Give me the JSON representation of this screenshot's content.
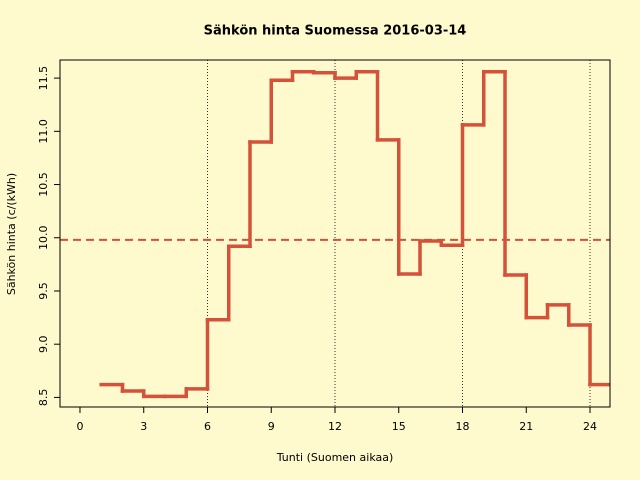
{
  "chart_data": {
    "type": "step",
    "title": "Sähkön hinta Suomessa 2016-03-14",
    "xlabel": "Tunti (Suomen aikaa)",
    "ylabel": "Sähkön hinta (c/(kWh)",
    "x": [
      1,
      2,
      3,
      4,
      5,
      6,
      7,
      8,
      9,
      10,
      11,
      12,
      13,
      14,
      15,
      16,
      17,
      18,
      19,
      20,
      21,
      22,
      23,
      24,
      25
    ],
    "series": [
      {
        "color": "#d4513a",
        "values": [
          8.62,
          8.56,
          8.51,
          8.51,
          8.58,
          9.23,
          9.92,
          10.9,
          11.48,
          11.56,
          11.55,
          11.5,
          11.56,
          10.92,
          9.66,
          9.97,
          9.93,
          11.06,
          11.56,
          9.65,
          9.25,
          9.37,
          9.18,
          8.62,
          8.62
        ]
      }
    ],
    "hline": 9.98,
    "vlines": [
      6,
      12,
      18,
      24
    ],
    "xlim": [
      -0.94,
      24.94
    ],
    "ylim": [
      8.41,
      11.67
    ],
    "xticks": [
      0,
      3,
      6,
      9,
      12,
      15,
      18,
      21,
      24
    ],
    "yticks": [
      {
        "value": 8.5,
        "label": "8.5"
      },
      {
        "value": 9,
        "label": "9.0"
      },
      {
        "value": 9.5,
        "label": "9.5"
      },
      {
        "value": 10,
        "label": "10.0"
      },
      {
        "value": 10.5,
        "label": "10.5"
      },
      {
        "value": 11,
        "label": "11.0"
      },
      {
        "value": 11.5,
        "label": "11.5"
      }
    ]
  }
}
